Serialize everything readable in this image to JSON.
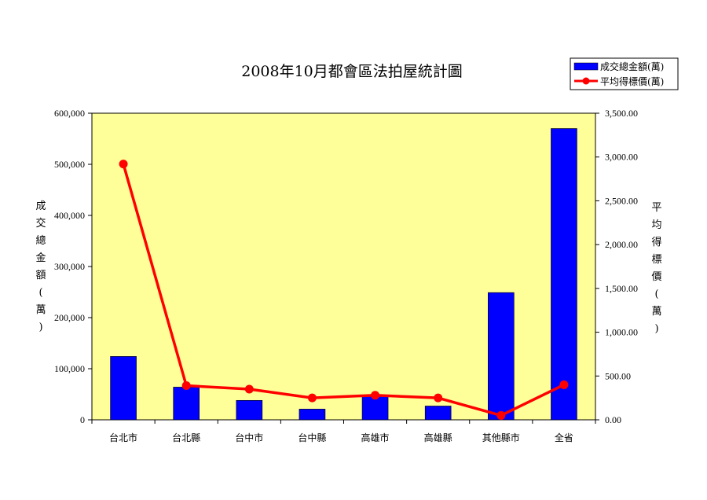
{
  "chart_data": {
    "type": "bar",
    "title": "2008年10月都會區法拍屋統計圖",
    "categories": [
      "台北市",
      "台北縣",
      "台中市",
      "台中縣",
      "高雄市",
      "高雄縣",
      "其他縣市",
      "全省"
    ],
    "series": [
      {
        "name": "成交總金額(萬)",
        "type": "bar",
        "axis": "left",
        "color": "#0000ff",
        "values": [
          124000,
          64000,
          38000,
          21000,
          46000,
          27000,
          249000,
          570000
        ]
      },
      {
        "name": "平均得標價(萬)",
        "type": "line",
        "axis": "right",
        "color": "#ff0000",
        "values": [
          2920,
          390,
          350,
          250,
          280,
          250,
          50,
          400
        ]
      }
    ],
    "ylabel": "成交總金額(萬)",
    "y2label": "平均得標價(萬)",
    "ylim": [
      0,
      600000
    ],
    "y2lim": [
      0,
      3500
    ],
    "yticks": [
      "0",
      "100,000",
      "200,000",
      "300,000",
      "400,000",
      "500,000",
      "600,000"
    ],
    "y2ticks": [
      "0.00",
      "500.00",
      "1,000.00",
      "1,500.00",
      "2,000.00",
      "2,500.00",
      "3,000.00",
      "3,500.00"
    ],
    "legend": "top-right",
    "grid": false,
    "plot_background": "#ffff99"
  }
}
